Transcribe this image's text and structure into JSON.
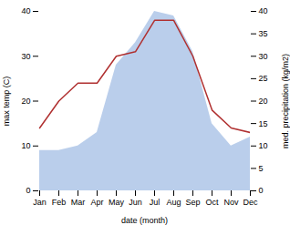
{
  "chart_data": {
    "type": "line",
    "xlabel": "date (month)",
    "ylabel": "max temp (C)",
    "y2label": "med. precipitation (kg/m2)",
    "categories": [
      "Jan",
      "Feb",
      "Mar",
      "Apr",
      "May",
      "Jun",
      "Jul",
      "Aug",
      "Sep",
      "Oct",
      "Nov",
      "Dec"
    ],
    "series": [
      {
        "type": "area",
        "axis": "y2",
        "color": "#aec6e8",
        "values": [
          9,
          9,
          10,
          13,
          28,
          33,
          40,
          39,
          31,
          15,
          10,
          12
        ]
      },
      {
        "type": "line",
        "color": "#b03030",
        "values": [
          14,
          20,
          24,
          24,
          30,
          31,
          38,
          38,
          30,
          18,
          14,
          13
        ]
      }
    ],
    "ylim": [
      0,
      40
    ],
    "yticks": [
      0,
      10,
      20,
      30,
      40
    ],
    "y2lim": [
      0,
      40
    ],
    "y2ticks": [
      0,
      5,
      10,
      15,
      20,
      25,
      30,
      35,
      40
    ]
  }
}
